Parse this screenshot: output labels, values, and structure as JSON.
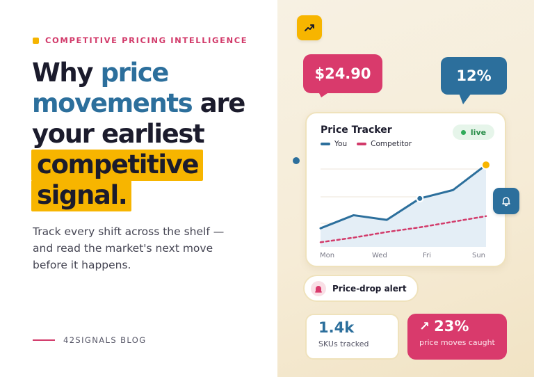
{
  "eyebrow": {
    "text": "COMPETITIVE PRICING INTELLIGENCE"
  },
  "headline": {
    "part1": "Why ",
    "part2_blue": "price",
    "line2_blue": "movements",
    "line2_rest": " are",
    "line3": "your earliest",
    "line4_highlight": "competitive",
    "line5_highlight": "signal."
  },
  "subtitle": {
    "line1": "Track every shift across the shelf —",
    "line2": "and read the market's next move",
    "line3": "before it happens."
  },
  "footer": {
    "label": "42SIGNALS BLOG"
  },
  "bubbles": {
    "price": "$24.90",
    "percent": "12%"
  },
  "tracker": {
    "title": "Price Tracker",
    "status": "live",
    "legend": [
      {
        "label": "You",
        "color": "#2c6f9c"
      },
      {
        "label": "Competitor",
        "color": "#d23a6a"
      }
    ]
  },
  "chart_data": {
    "type": "line",
    "x_tick_labels": [
      "Mon",
      "Wed",
      "Fri",
      "Sun"
    ],
    "series": [
      {
        "name": "You",
        "values": [
          0.2,
          0.34,
          0.29,
          0.52,
          0.61,
          0.88
        ],
        "style": "solid",
        "color": "#2c6f9c"
      },
      {
        "name": "Competitor",
        "values": [
          0.05,
          0.1,
          0.16,
          0.21,
          0.27,
          0.33
        ],
        "style": "dashed",
        "color": "#d23a6a"
      }
    ],
    "ylim": [
      0,
      1
    ],
    "grid": true,
    "legend_position": "top-left"
  },
  "alert": {
    "label": "Price-drop alert"
  },
  "stats": {
    "skus": {
      "value": "1.4k",
      "label": "SKUs tracked"
    },
    "moves": {
      "value": "23%",
      "label": "price moves caught"
    }
  },
  "icons": {
    "trend": "trend-up-icon",
    "bell": "bell-icon",
    "alert": "alert-siren-icon",
    "arrow": "arrow-up-right-icon"
  },
  "colors": {
    "pink": "#d93a6c",
    "blue": "#2c6f9c",
    "yellow": "#f7b500",
    "dark": "#1b1b2c"
  }
}
